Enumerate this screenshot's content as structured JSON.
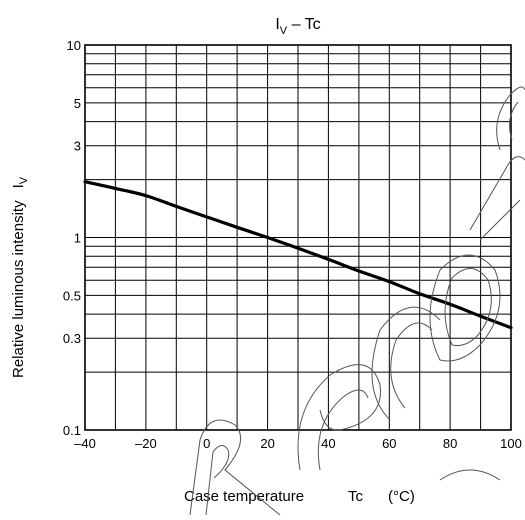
{
  "chart_data": {
    "type": "line",
    "title_main": "I",
    "title_sub": "V",
    "title_rest": " – Tc",
    "xlabel_parts": [
      "Case temperature",
      "Tc",
      "(°C)"
    ],
    "ylabel_main": "Relative luminous intensity",
    "ylabel_sym": "I",
    "ylabel_sub": "V",
    "xlim": [
      -40,
      100
    ],
    "ylim": [
      0.1,
      10
    ],
    "yscale": "log",
    "grid": true,
    "x_ticks": [
      -40,
      -20,
      0,
      20,
      40,
      60,
      80,
      100
    ],
    "x_tick_labels": [
      "–40",
      "–20",
      "0",
      "20",
      "40",
      "60",
      "80",
      "100"
    ],
    "y_ticks": [
      0.1,
      0.3,
      0.5,
      1,
      3,
      5,
      10
    ],
    "y_tick_labels": [
      "0.1",
      "0.3",
      "0.5",
      "1",
      "3",
      "5",
      "10"
    ],
    "series": [
      {
        "x": [
          -40,
          -30,
          -20,
          -10,
          0,
          10,
          20,
          30,
          40,
          50,
          60,
          70,
          80,
          90,
          100
        ],
        "y": [
          1.95,
          1.8,
          1.65,
          1.45,
          1.28,
          1.13,
          1.0,
          0.88,
          0.77,
          0.67,
          0.59,
          0.51,
          0.45,
          0.39,
          0.34
        ]
      }
    ],
    "watermark": "Recommended"
  }
}
